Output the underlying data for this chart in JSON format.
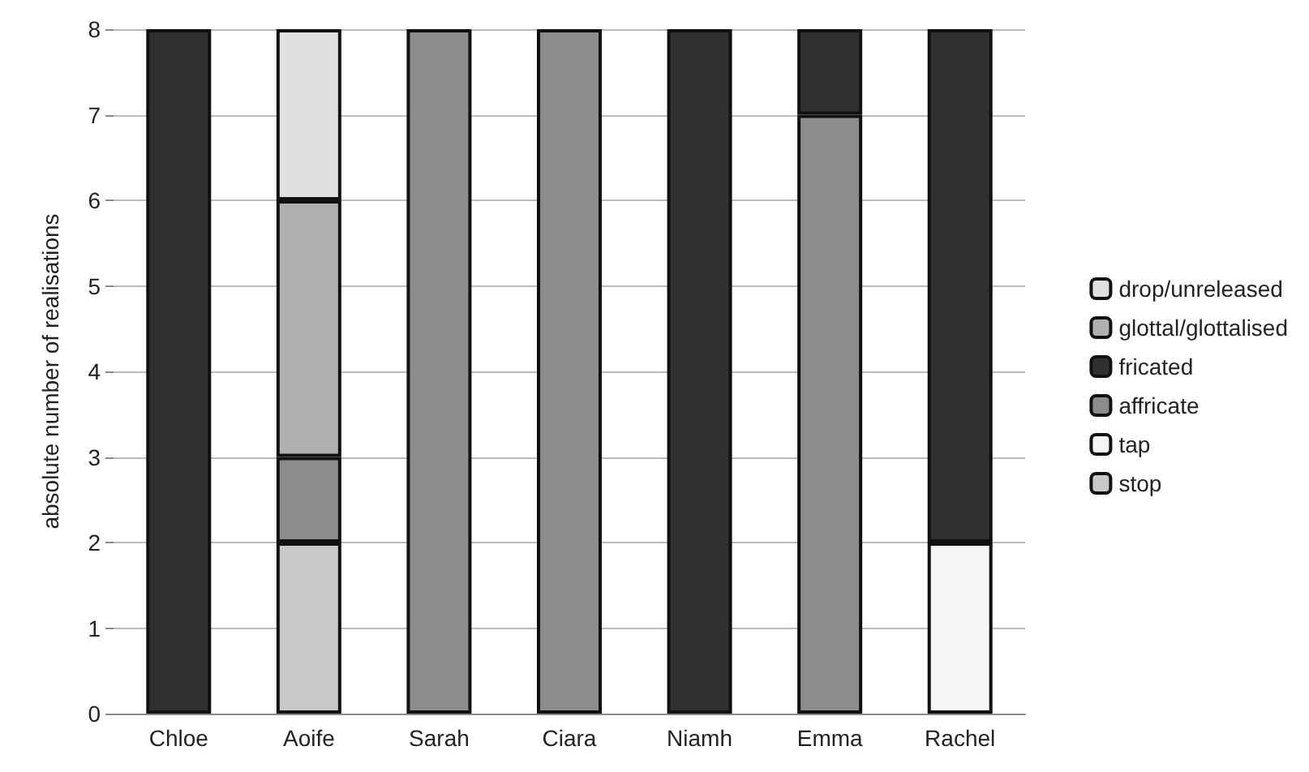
{
  "chart_data": {
    "type": "bar",
    "ylabel": "absolute number of realisations",
    "categories": [
      "Chloe",
      "Aoife",
      "Sarah",
      "Ciara",
      "Niamh",
      "Emma",
      "Rachel"
    ],
    "stacked": true,
    "ylim": [
      0,
      8
    ],
    "yticks": [
      0,
      1,
      2,
      3,
      4,
      5,
      6,
      7,
      8
    ],
    "grid": "y",
    "legend": "right",
    "series": [
      {
        "name": "stop",
        "color": "#c8c8c8",
        "values": [
          0,
          2,
          0,
          0,
          0,
          0,
          0
        ]
      },
      {
        "name": "tap",
        "color": "#f5f5f5",
        "values": [
          0,
          0,
          0,
          0,
          0,
          0,
          2
        ]
      },
      {
        "name": "affricate",
        "color": "#8c8c8c",
        "values": [
          0,
          1,
          8,
          8,
          0,
          7,
          0
        ]
      },
      {
        "name": "fricated",
        "color": "#303030",
        "values": [
          8,
          0,
          0,
          0,
          8,
          1,
          6
        ]
      },
      {
        "name": "glottal/glottalised",
        "color": "#b0b0b0",
        "values": [
          0,
          3,
          0,
          0,
          0,
          0,
          0
        ]
      },
      {
        "name": "drop/unreleased",
        "color": "#e0e0e0",
        "values": [
          0,
          2,
          0,
          0,
          0,
          0,
          0
        ]
      }
    ]
  }
}
